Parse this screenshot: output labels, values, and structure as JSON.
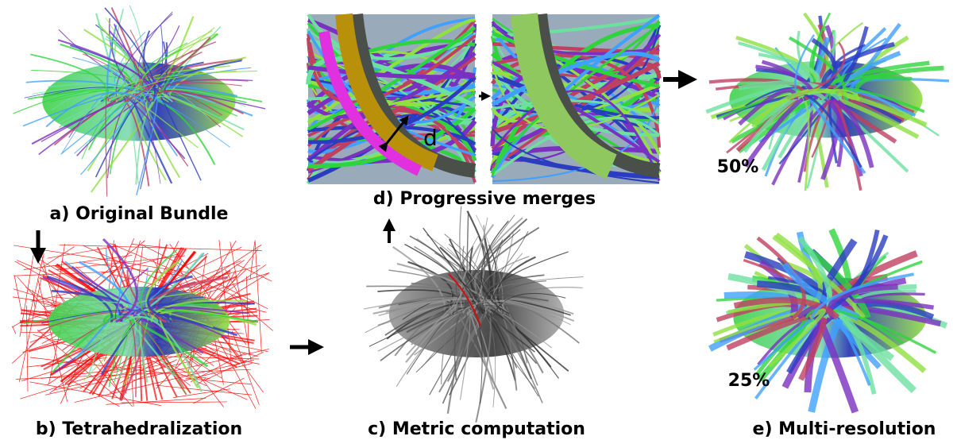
{
  "panels": [
    {
      "label": "a) Original Bundle"
    },
    {
      "label": "b) Tetrahedralization"
    },
    {
      "label": "c) Metric computation"
    },
    {
      "label": "d) Progressive merges"
    },
    {
      "label": "e) Multi-resolution"
    }
  ],
  "annotations": {
    "distance": "d",
    "top_level": "50%",
    "bottom_level": "25%"
  }
}
